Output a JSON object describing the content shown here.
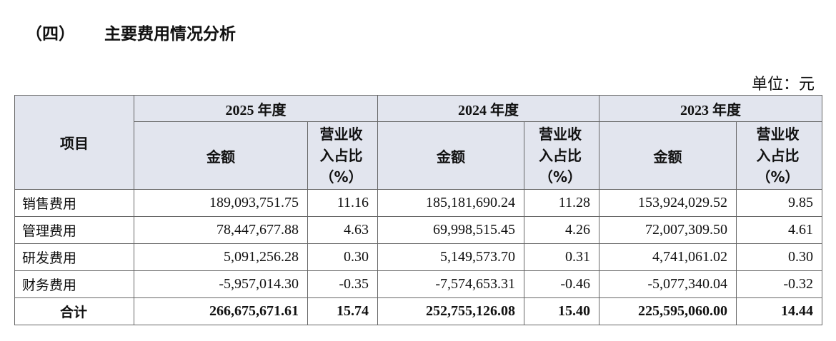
{
  "header": {
    "section": "（四）",
    "title": "主要费用情况分析"
  },
  "unit": "单位：元",
  "table": {
    "item_header": "项目",
    "years": [
      "2025 年度",
      "2024 年度",
      "2023 年度"
    ],
    "amount_header": "金额",
    "ratio_header": "营业收入占比（%）",
    "rows": [
      [
        "销售费用",
        "189,093,751.75",
        "11.16",
        "185,181,690.24",
        "11.28",
        "153,924,029.52",
        "9.85"
      ],
      [
        "管理费用",
        "78,447,677.88",
        "4.63",
        "69,998,515.45",
        "4.26",
        "72,007,309.50",
        "4.61"
      ],
      [
        "研发费用",
        "5,091,256.28",
        "0.30",
        "5,149,573.70",
        "0.31",
        "4,741,061.02",
        "0.30"
      ],
      [
        "财务费用",
        "-5,957,014.30",
        "-0.35",
        "-7,574,653.31",
        "-0.46",
        "-5,077,340.04",
        "-0.32"
      ],
      [
        "合计",
        "266,675,671.61",
        "15.74",
        "252,755,126.08",
        "15.40",
        "225,595,060.00",
        "14.44"
      ]
    ]
  }
}
